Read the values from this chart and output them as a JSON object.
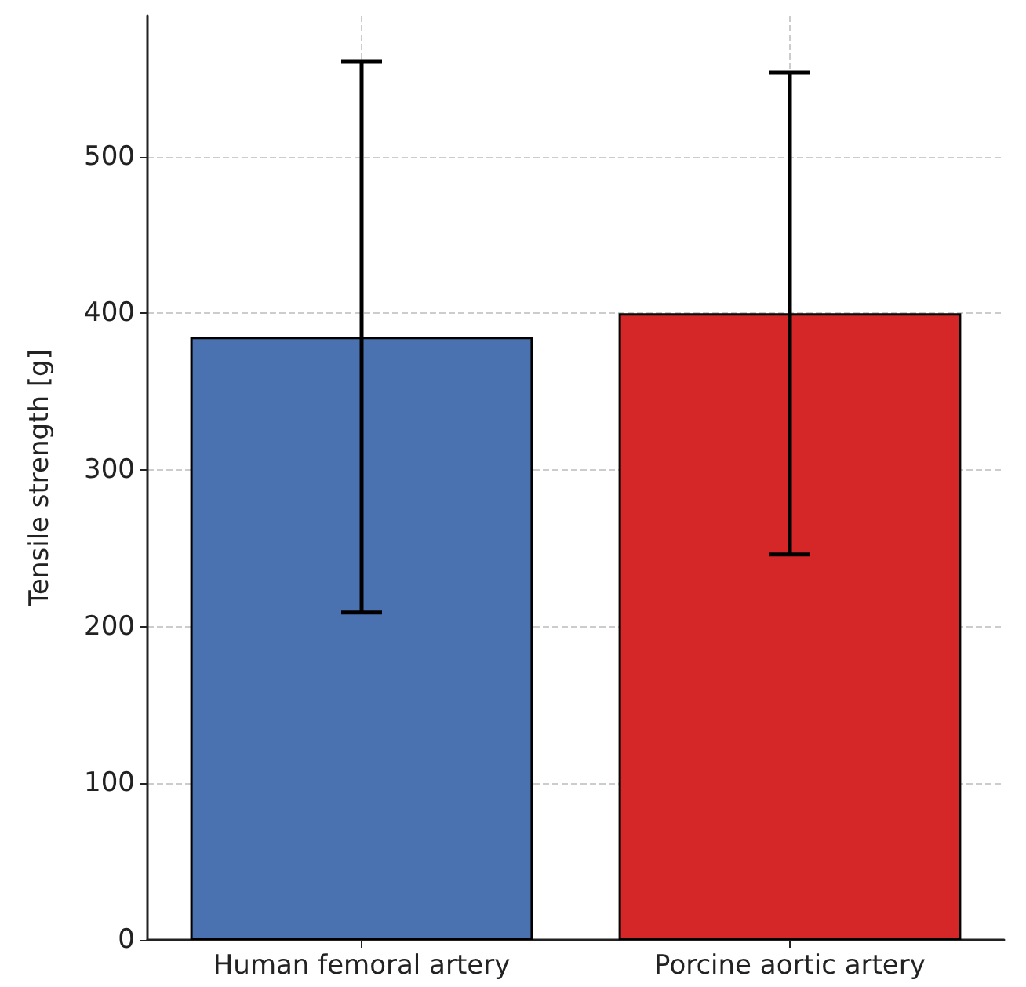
{
  "chart_data": {
    "type": "bar",
    "ylabel": "Tensile strength [g]",
    "categories": [
      "Human femoral artery",
      "Porcine aortic artery"
    ],
    "values": [
      385,
      400
    ],
    "colors": [
      "#4a72b0",
      "#d62728"
    ],
    "errors": [
      176,
      154
    ],
    "ylim": [
      0,
      590
    ],
    "yticks": [
      0,
      100,
      200,
      300,
      400,
      500
    ],
    "grid": true
  }
}
